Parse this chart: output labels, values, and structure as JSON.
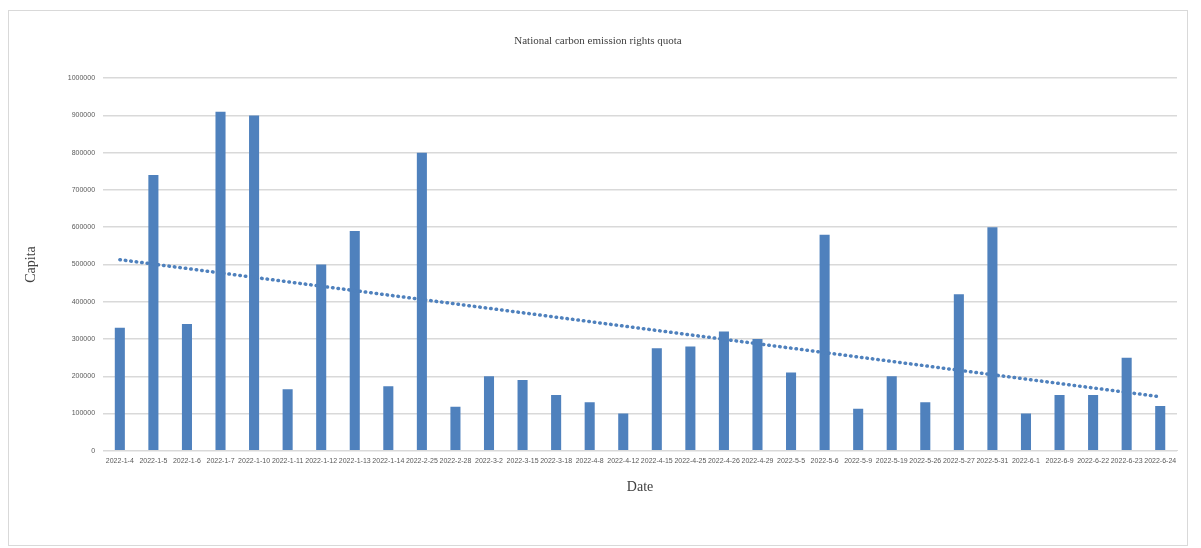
{
  "chart_data": {
    "type": "bar",
    "title": "National carbon emission rights quota",
    "xlabel": "Date",
    "ylabel": "Capita",
    "categories": [
      "2022-1-4",
      "2022-1-5",
      "2022-1-6",
      "2022-1-7",
      "2022-1-10",
      "2022-1-11",
      "2022-1-12",
      "2022-1-13",
      "2022-1-14",
      "2022-2-25",
      "2022-2-28",
      "2022-3-2",
      "2022-3-15",
      "2022-3-18",
      "2022-4-8",
      "2022-4-12",
      "2022-4-15",
      "2022-4-25",
      "2022-4-26",
      "2022-4-29",
      "2022-5-5",
      "2022-5-6",
      "2022-5-9",
      "2022-5-19",
      "2022-5-26",
      "2022-5-27",
      "2022-5-31",
      "2022-6-1",
      "2022-6-9",
      "2022-6-22",
      "2022-6-23",
      "2022-6-24"
    ],
    "series": [
      {
        "color": "#4f81bd",
        "values": [
          330000,
          740000,
          340000,
          910000,
          900000,
          165000,
          500000,
          590000,
          173000,
          800000,
          118000,
          200000,
          190000,
          150000,
          130000,
          100000,
          275000,
          280000,
          320000,
          300000,
          210000,
          580000,
          113000,
          200000,
          130000,
          420000,
          600000,
          100000,
          150000,
          150000,
          250000,
          120000
        ]
      },
      {
        "type": "line",
        "color": "#4f81bd",
        "x": [
          "2022-1-4",
          "2022-6-24"
        ],
        "values": [
          513000,
          145000
        ],
        "marker": "none",
        "line_style": "dotted"
      }
    ],
    "ylim": [
      0,
      1000000
    ],
    "yticks": [
      0,
      100000,
      200000,
      300000,
      400000,
      500000,
      600000,
      700000,
      800000,
      900000,
      1000000
    ],
    "grid": "y",
    "legend": false
  }
}
